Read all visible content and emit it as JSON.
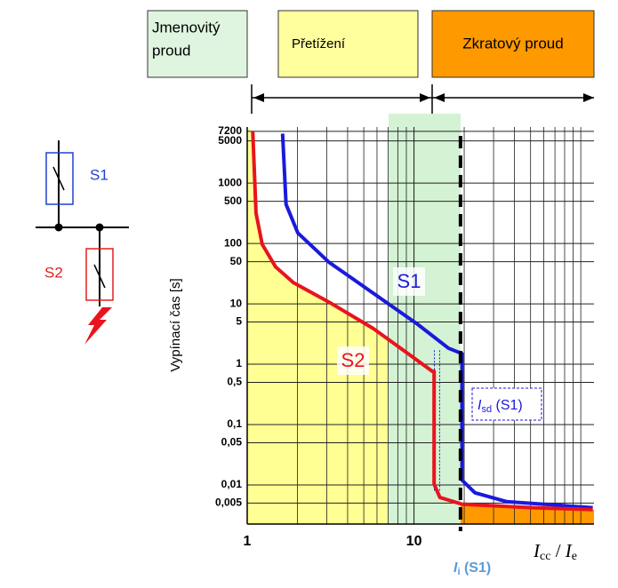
{
  "header": {
    "zones": [
      {
        "lines": [
          "Jmenovitý",
          "proud"
        ]
      },
      {
        "lines": [
          "Přetížení"
        ]
      },
      {
        "lines": [
          "Zkratový proud"
        ]
      }
    ]
  },
  "schematic": {
    "s1": "S1",
    "s2": "S2"
  },
  "chart_data": {
    "type": "line",
    "ylabel": "Vypínací čas [s]",
    "xlabel": {
      "a": "I",
      "a_sub": "cc",
      "sep": " / ",
      "b": "I",
      "b_sub": "e"
    },
    "xlog": true,
    "ylog": true,
    "grid": true,
    "xlim": [
      1,
      120
    ],
    "ylim": [
      0.00225,
      8500
    ],
    "xticks": [
      1,
      10
    ],
    "yticks": [
      7200,
      5000,
      1000,
      500,
      100,
      50,
      10,
      5,
      1,
      {
        "value": 0.5,
        "label": "0,5"
      },
      {
        "value": 0.1,
        "label": "0,1"
      },
      {
        "value": 0.05,
        "label": "0,05"
      },
      {
        "value": 0.01,
        "label": "0,01"
      },
      {
        "value": 0.005,
        "label": "0,005"
      }
    ],
    "series": [
      {
        "name": "S1",
        "color": "#1a1adc",
        "x": [
          1.63,
          1.71,
          2.01,
          3.09,
          5.7,
          10.5,
          16.1,
          19.4,
          19.4,
          23.2,
          35.8,
          118
        ],
        "values": [
          6600,
          445,
          150,
          49,
          15,
          4.6,
          1.84,
          1.5,
          0.012,
          0.0074,
          0.0053,
          0.0042
        ]
      },
      {
        "name": "S2",
        "color": "#e8141e",
        "x": [
          1.08,
          1.13,
          1.23,
          1.48,
          1.89,
          3.09,
          5.7,
          8.75,
          12.9,
          13.2,
          13.2,
          14.3,
          19.4,
          51.5,
          118
        ],
        "values": [
          7100,
          316,
          97,
          41,
          22.5,
          10.7,
          3.9,
          1.66,
          0.76,
          0.76,
          0.0103,
          0.0062,
          0.0048,
          0.0042,
          0.0039
        ]
      }
    ],
    "ii_value": 19,
    "isd_label": {
      "a": "I",
      "sub": "sd",
      "rest": " (S1)"
    },
    "ii_label": {
      "a": "I",
      "sub": "i",
      "rest": " (S1)"
    }
  }
}
